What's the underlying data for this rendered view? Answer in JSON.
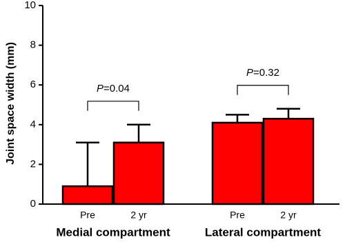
{
  "chart_data": {
    "type": "bar",
    "y_label": "Joint space width (mm)",
    "categories": [
      "Pre",
      "2 yr",
      "Pre",
      "2 yr"
    ],
    "groups": [
      "Medial compartment",
      "Lateral compartment"
    ],
    "values": [
      0.9,
      3.1,
      4.1,
      4.3
    ],
    "errors": [
      2.2,
      0.9,
      0.4,
      0.5
    ],
    "color": "#ff0000",
    "ylim": [
      0,
      10
    ],
    "yticks": [
      0,
      2,
      4,
      6,
      8,
      10
    ],
    "annotations": [
      "P=0.04",
      "P=0.32"
    ]
  }
}
